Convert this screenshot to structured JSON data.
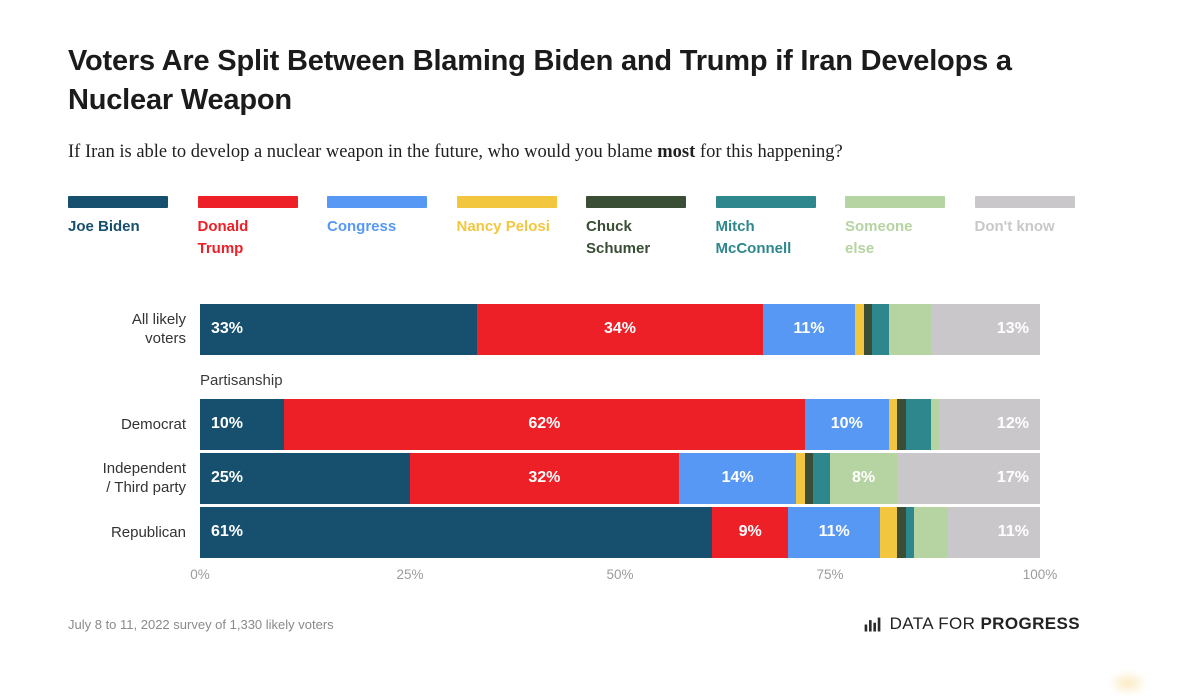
{
  "header": {
    "title": "Voters Are Split Between Blaming Biden and Trump if Iran Develops a Nuclear Weapon",
    "subtitle_pre": "If Iran is able to develop a nuclear weapon in the future, who would you blame ",
    "subtitle_bold": "most",
    "subtitle_post": " for this happening?"
  },
  "legend": {
    "items": [
      {
        "label": "Joe Biden",
        "color": "#17506e"
      },
      {
        "label": "Donald Trump",
        "color": "#ed1f27"
      },
      {
        "label": "Congress",
        "color": "#5798f5"
      },
      {
        "label": "Nancy Pelosi",
        "color": "#f3c63f"
      },
      {
        "label": "Chuck Schumer",
        "color": "#3a4d35"
      },
      {
        "label": "Mitch McConnell",
        "color": "#2e878d"
      },
      {
        "label": "Someone else",
        "color": "#b6d3a2"
      },
      {
        "label": "Don't know",
        "color": "#c9c7ca"
      }
    ]
  },
  "chart_data": {
    "type": "bar",
    "stacked": true,
    "orientation": "horizontal",
    "title": "Voters Are Split Between Blaming Biden and Trump if Iran Develops a Nuclear Weapon",
    "question": "If Iran is able to develop a nuclear weapon in the future, who would you blame most for this happening?",
    "unit": "percent",
    "categories": [
      "All likely voters",
      "Democrat",
      "Independent / Third party",
      "Republican"
    ],
    "category_display_labels": [
      "All likely\nvoters",
      "Democrat",
      "Independent\n/ Third party",
      "Republican"
    ],
    "group_heading": {
      "before_index": 1,
      "label": "Partisanship"
    },
    "series": [
      {
        "name": "Joe Biden",
        "color": "#17506e",
        "values": [
          33,
          10,
          25,
          61
        ]
      },
      {
        "name": "Donald Trump",
        "color": "#ed1f27",
        "values": [
          34,
          62,
          32,
          9
        ]
      },
      {
        "name": "Congress",
        "color": "#5798f5",
        "values": [
          11,
          10,
          14,
          11
        ]
      },
      {
        "name": "Nancy Pelosi",
        "color": "#f3c63f",
        "values": [
          1,
          1,
          1,
          2
        ]
      },
      {
        "name": "Chuck Schumer",
        "color": "#3a4d35",
        "values": [
          1,
          1,
          1,
          1
        ]
      },
      {
        "name": "Mitch McConnell",
        "color": "#2e878d",
        "values": [
          2,
          3,
          2,
          1
        ]
      },
      {
        "name": "Someone else",
        "color": "#b6d3a2",
        "values": [
          5,
          1,
          8,
          4
        ]
      },
      {
        "name": "Don't know",
        "color": "#c9c7ca",
        "values": [
          13,
          12,
          17,
          11
        ]
      }
    ],
    "xlim": [
      0,
      100
    ],
    "x_ticks": [
      "0%",
      "25%",
      "50%",
      "75%",
      "100%"
    ],
    "value_label_threshold": 8,
    "value_label_suffix": "%",
    "legend_position": "top",
    "grid": false
  },
  "footer": {
    "source": "July 8 to 11, 2022 survey of 1,330 likely voters",
    "logo": {
      "prefix": "DATA FOR",
      "name": "PROGRESS"
    }
  }
}
